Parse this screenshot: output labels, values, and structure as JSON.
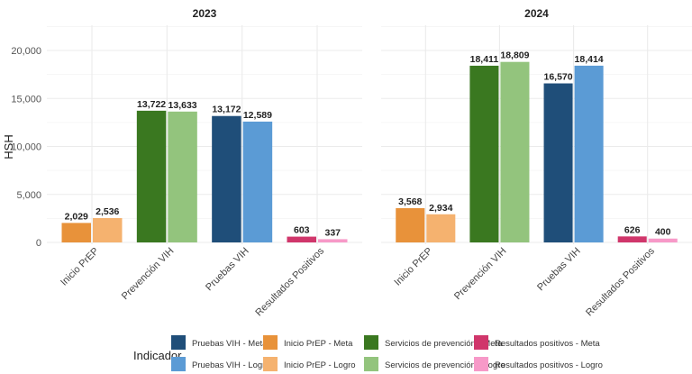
{
  "chart_data": {
    "type": "bar",
    "ylabel": "HSH",
    "ylim": [
      0,
      22500
    ],
    "yticks": [
      0,
      5000,
      10000,
      15000,
      20000
    ],
    "ytick_labels": [
      "0",
      "5,000",
      "10,000",
      "15,000",
      "20,000"
    ],
    "grid": true,
    "categories": [
      "Inicio PrEP",
      "Prevención VIH",
      "Pruebas VIH",
      "Resultados Positivos"
    ],
    "panels": [
      {
        "title": "2023",
        "bars": [
          {
            "category": "Inicio PrEP",
            "series": "Inicio PrEP - Meta",
            "value": 2029,
            "label": "2,029"
          },
          {
            "category": "Inicio PrEP",
            "series": "Inicio PrEP - Logro",
            "value": 2536,
            "label": "2,536"
          },
          {
            "category": "Prevención VIH",
            "series": "Servicios de prevención - Meta",
            "value": 13722,
            "label": "13,722"
          },
          {
            "category": "Prevención VIH",
            "series": "Servicios de prevención - Logro",
            "value": 13633,
            "label": "13,633"
          },
          {
            "category": "Pruebas VIH",
            "series": "Pruebas VIH - Meta",
            "value": 13172,
            "label": "13,172"
          },
          {
            "category": "Pruebas VIH",
            "series": "Pruebas VIH - Logro",
            "value": 12589,
            "label": "12,589"
          },
          {
            "category": "Resultados Positivos",
            "series": "Resultados positivos - Meta",
            "value": 603,
            "label": "603"
          },
          {
            "category": "Resultados Positivos",
            "series": "Resultados positivos - Logro",
            "value": 337,
            "label": "337"
          }
        ]
      },
      {
        "title": "2024",
        "bars": [
          {
            "category": "Inicio PrEP",
            "series": "Inicio PrEP - Meta",
            "value": 3568,
            "label": "3,568"
          },
          {
            "category": "Inicio PrEP",
            "series": "Inicio PrEP - Logro",
            "value": 2934,
            "label": "2,934"
          },
          {
            "category": "Prevención VIH",
            "series": "Servicios de prevención - Meta",
            "value": 18411,
            "label": "18,411"
          },
          {
            "category": "Prevención VIH",
            "series": "Servicios de prevención - Logro",
            "value": 18809,
            "label": "18,809"
          },
          {
            "category": "Pruebas VIH",
            "series": "Pruebas VIH - Meta",
            "value": 16570,
            "label": "16,570"
          },
          {
            "category": "Pruebas VIH",
            "series": "Pruebas VIH - Logro",
            "value": 18414,
            "label": "18,414"
          },
          {
            "category": "Resultados Positivos",
            "series": "Resultados positivos - Meta",
            "value": 626,
            "label": "626"
          },
          {
            "category": "Resultados Positivos",
            "series": "Resultados positivos - Logro",
            "value": 400,
            "label": "400"
          }
        ]
      }
    ],
    "legend": {
      "title": "Indicador",
      "placement": "bottom",
      "entries": [
        {
          "name": "Pruebas VIH - Meta",
          "color": "#1f4e79"
        },
        {
          "name": "Pruebas VIH - Logro",
          "color": "#5b9bd5"
        },
        {
          "name": "Inicio PrEP - Meta",
          "color": "#e8923a"
        },
        {
          "name": "Inicio PrEP - Logro",
          "color": "#f5b26f"
        },
        {
          "name": "Servicios de prevención - Meta",
          "color": "#3a7820"
        },
        {
          "name": "Servicios de prevención - Logro",
          "color": "#93c47d"
        },
        {
          "name": "Resultados positivos - Meta",
          "color": "#d0366b"
        },
        {
          "name": "Resultados positivos - Logro",
          "color": "#f799c8"
        }
      ]
    }
  }
}
